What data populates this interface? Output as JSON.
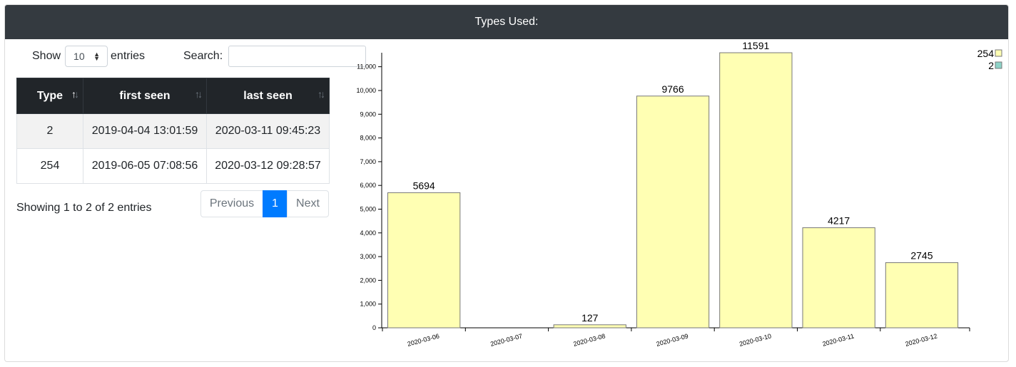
{
  "header": {
    "title": "Types Used:"
  },
  "length_menu": {
    "show_label": "Show",
    "value": "10",
    "entries_label": "entries"
  },
  "search": {
    "label": "Search:",
    "value": "",
    "placeholder": ""
  },
  "table": {
    "columns": [
      "Type",
      "first seen",
      "last seen"
    ],
    "rows": [
      [
        "2",
        "2019-04-04 13:01:59",
        "2020-03-11 09:45:23"
      ],
      [
        "254",
        "2019-06-05 07:08:56",
        "2020-03-12 09:28:57"
      ]
    ]
  },
  "info": "Showing 1 to 2 of 2 entries",
  "pagination": {
    "previous": "Previous",
    "current": "1",
    "next": "Next"
  },
  "chart_data": {
    "type": "bar",
    "categories": [
      "2020-03-06",
      "2020-03-07",
      "2020-03-08",
      "2020-03-09",
      "2020-03-10",
      "2020-03-11",
      "2020-03-12"
    ],
    "series": [
      {
        "name": "254",
        "values": [
          5694,
          0,
          127,
          9766,
          11591,
          4217,
          2745
        ],
        "color": "#ffffb3"
      },
      {
        "name": "2",
        "values": [
          0,
          0,
          0,
          0,
          0,
          0,
          0
        ],
        "color": "#8dd3c7"
      }
    ],
    "value_labels": [
      "5694",
      "",
      "127",
      "9766",
      "11591",
      "4217",
      "2745"
    ],
    "y_ticks": [
      0,
      1000,
      2000,
      3000,
      4000,
      5000,
      6000,
      7000,
      8000,
      9000,
      10000,
      11000
    ],
    "y_tick_labels": [
      "0",
      "1,000",
      "2,000",
      "3,000",
      "4,000",
      "5,000",
      "6,000",
      "7,000",
      "8,000",
      "9,000",
      "10,000",
      "11,000"
    ],
    "ylim": [
      0,
      11591
    ],
    "legend_position": "top-right",
    "grid": false
  }
}
